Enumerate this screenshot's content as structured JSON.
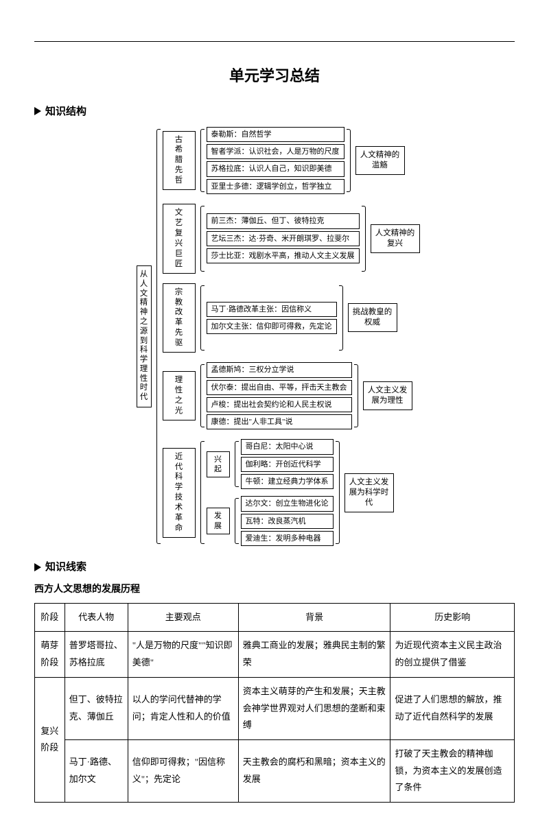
{
  "title": "单元学习总结",
  "sections": {
    "structure": "知识结构",
    "thread": "知识线索"
  },
  "tree": {
    "root": "从人文精神之源到科学理性时代",
    "branches": [
      {
        "label": "古希腊先哲",
        "items": [
          "泰勒斯：自然哲学",
          "智者学派：认识社会，人是万物的尺度",
          "苏格拉底：认识人自己，知识即美德",
          "亚里士多德：逻辑学创立，哲学独立"
        ],
        "right": "人文精神的滥觞"
      },
      {
        "label": "文艺复兴巨匠",
        "items": [
          "前三杰：薄伽丘、但丁、彼特拉克",
          "艺坛三杰：达·芬奇、米开朗琪罗、拉斐尔",
          "莎士比亚：戏剧水平高，推动人文主义发展"
        ],
        "right": "人文精神的复兴"
      },
      {
        "label": "宗教改革先驱",
        "items": [
          "马丁·路德改革主张：因信称义",
          "加尔文主张：信仰即可得救，先定论"
        ],
        "right": "挑战教皇的权威"
      },
      {
        "label": "理性之光",
        "items": [
          "孟德斯鸠：三权分立学说",
          "伏尔泰：提出自由、平等，抨击天主教会",
          "卢梭：提出社会契约论和人民主权说",
          "康德：提出\"人非工具\"说"
        ],
        "right": "人文主义发展为理性"
      },
      {
        "label": "近代科学技术革命",
        "sub": [
          {
            "label": "兴起",
            "items": [
              "哥白尼：太阳中心说",
              "伽利略：开创近代科学",
              "牛顿：建立经典力学体系"
            ]
          },
          {
            "label": "发展",
            "items": [
              "达尔文：创立生物进化论",
              "瓦特：改良蒸汽机",
              "爱迪生：发明多种电器"
            ]
          }
        ],
        "right": "人文主义发展为科学时代"
      }
    ]
  },
  "thread_title": "西方人文思想的发展历程",
  "table": {
    "headers": [
      "阶段",
      "代表人物",
      "主要观点",
      "背景",
      "历史影响"
    ],
    "rows": [
      {
        "stage": "萌芽阶段",
        "stage_rowspan": 1,
        "cells": [
          "普罗塔哥拉、苏格拉底",
          "\"人是万物的尺度\"\"知识即美德\"",
          "雅典工商业的发展；雅典民主制的繁荣",
          "为近现代资本主义民主政治的创立提供了借鉴"
        ]
      },
      {
        "stage": "复兴阶段",
        "stage_rowspan": 2,
        "cells": [
          "但丁、彼特拉克、薄伽丘",
          "以人的学问代替神的学问；肯定人性和人的价值",
          "资本主义萌芽的产生和发展；天主教会神学世界观对人们思想的垄断和束缚",
          "促进了人们思想的解放，推动了近代自然科学的发展"
        ]
      },
      {
        "cells": [
          "马丁·路德、加尔文",
          "信仰即可得救；\"因信称义\"；先定论",
          "天主教会的腐朽和黑暗；资本主义的发展",
          "打破了天主教会的精神枷锁，为资本主义的发展创造了条件"
        ]
      }
    ]
  }
}
